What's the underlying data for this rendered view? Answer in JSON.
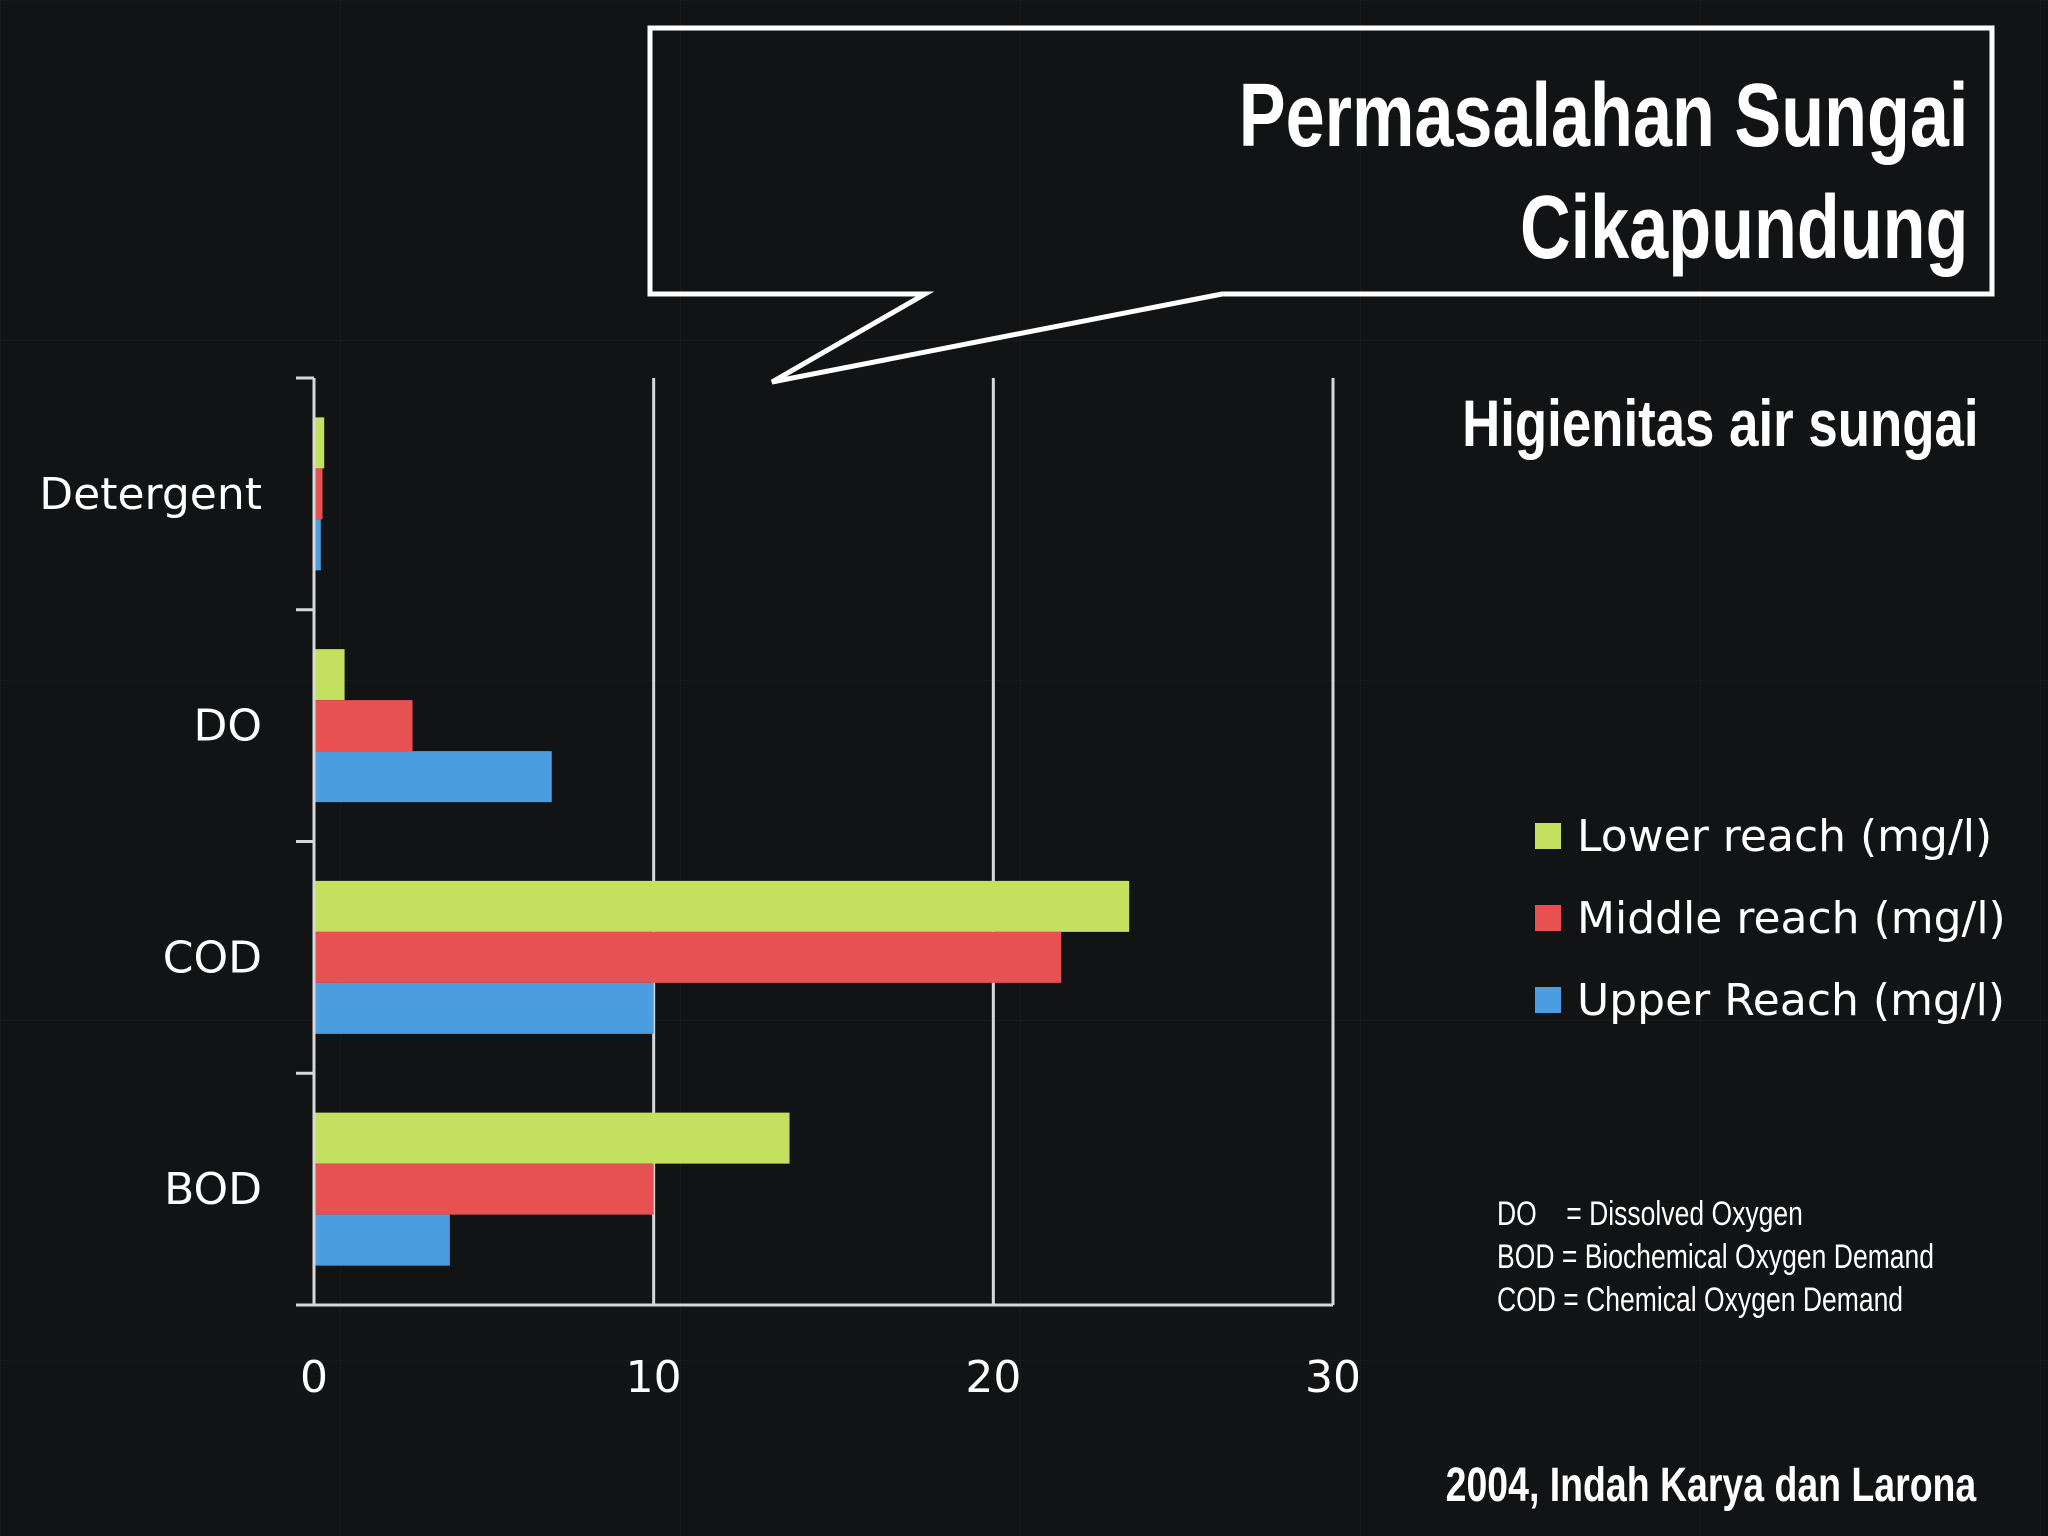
{
  "title_line1": "Permasalahan Sungai",
  "title_line2": "Cikapundung",
  "subtitle": "Higienitas air sungai",
  "notes": [
    "DO    = Dissolved Oxygen",
    "BOD = Biochemical Oxygen Demand",
    "COD = Chemical Oxygen Demand"
  ],
  "credit": "2004, Indah Karya dan Larona",
  "colors": {
    "lower": "#c4e05f",
    "middle": "#e85151",
    "upper": "#4a9de0",
    "background": "#121314"
  },
  "chart_data": {
    "type": "bar",
    "orientation": "horizontal",
    "categories": [
      "Detergent",
      "DO",
      "COD",
      "BOD"
    ],
    "series": [
      {
        "name": "Lower reach (mg/l)",
        "color": "#c4e05f",
        "values": [
          0.3,
          0.9,
          24,
          14
        ]
      },
      {
        "name": "Middle reach (mg/l)",
        "color": "#e85151",
        "values": [
          0.25,
          2.9,
          22,
          10
        ]
      },
      {
        "name": "Upper Reach (mg/l)",
        "color": "#4a9de0",
        "values": [
          0.2,
          7,
          10,
          4
        ]
      }
    ],
    "xlim": [
      0,
      30
    ],
    "xticks": [
      "0",
      "10",
      "20",
      "30"
    ],
    "grid": true,
    "legend": "right"
  }
}
